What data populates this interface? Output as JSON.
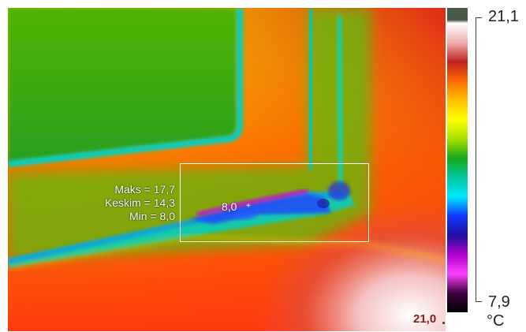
{
  "measurement": {
    "max_label": "Maks = 17,7",
    "avg_label": "Keskim = 14,3",
    "min_label": "Min = 8,0",
    "spot_label": "8,0",
    "corner_temperature": "21,0"
  },
  "scale": {
    "max": "21,1",
    "min": "7,9",
    "unit": "°C"
  },
  "palette": {
    "colors": [
      "#4a5a4a",
      "#ffffff",
      "#f0b0b0",
      "#c02020",
      "#ff6a00",
      "#ffc000",
      "#ffff00",
      "#a8e000",
      "#18a818",
      "#00c8a0",
      "#00e8ff",
      "#1038ff",
      "#2010a0",
      "#b000d0",
      "#ff40ff",
      "#400040",
      "#000000"
    ]
  }
}
